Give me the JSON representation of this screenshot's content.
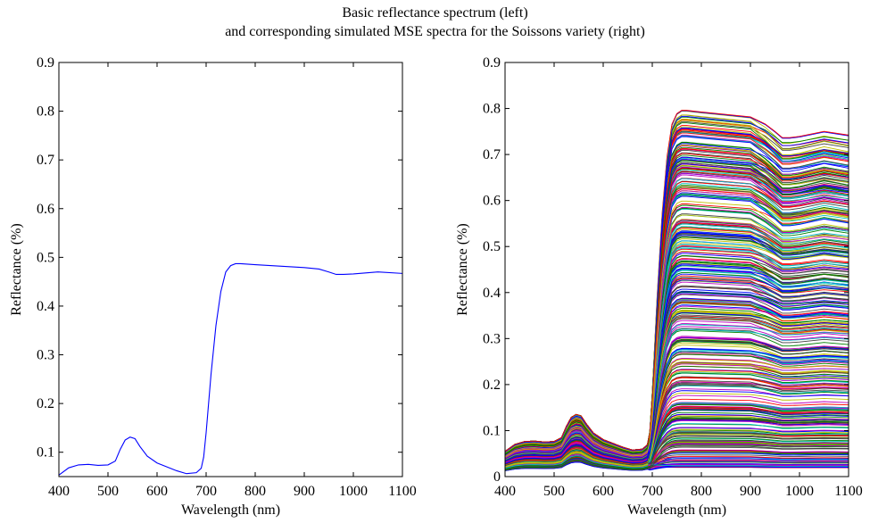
{
  "figure": {
    "title_line1": "Basic reflectance spectrum (left)",
    "title_line2": "and corresponding simulated MSE spectra for the Soissons variety (right)"
  },
  "chart_data": [
    {
      "type": "line",
      "panel": "left",
      "xlabel": "Wavelength (nm)",
      "ylabel": "Reflectance (%)",
      "xlim": [
        400,
        1100
      ],
      "ylim": [
        0.05,
        0.9
      ],
      "xticks": [
        400,
        500,
        600,
        700,
        800,
        900,
        1000,
        1100
      ],
      "yticks": [
        0.1,
        0.2,
        0.3,
        0.4,
        0.5,
        0.6,
        0.7,
        0.8,
        0.9
      ],
      "grid": false,
      "series": [
        {
          "color": "#0000ff",
          "x": [
            400,
            420,
            440,
            460,
            480,
            500,
            515,
            525,
            535,
            545,
            555,
            565,
            580,
            600,
            620,
            640,
            660,
            680,
            690,
            695,
            700,
            705,
            710,
            720,
            730,
            740,
            750,
            760,
            770,
            800,
            850,
            900,
            930,
            950,
            965,
            980,
            1000,
            1050,
            1100
          ],
          "y": [
            0.053,
            0.068,
            0.074,
            0.075,
            0.073,
            0.074,
            0.082,
            0.106,
            0.125,
            0.131,
            0.128,
            0.112,
            0.092,
            0.078,
            0.07,
            0.062,
            0.056,
            0.058,
            0.067,
            0.09,
            0.14,
            0.2,
            0.26,
            0.36,
            0.43,
            0.47,
            0.483,
            0.487,
            0.487,
            0.485,
            0.482,
            0.479,
            0.476,
            0.47,
            0.465,
            0.465,
            0.466,
            0.47,
            0.467
          ]
        }
      ]
    },
    {
      "type": "line",
      "panel": "right",
      "xlabel": "Wavelength (nm)",
      "ylabel": "Reflectance (%)",
      "xlim": [
        400,
        1100
      ],
      "ylim": [
        0,
        0.9
      ],
      "xticks": [
        400,
        500,
        600,
        700,
        800,
        900,
        1000,
        1100
      ],
      "yticks": [
        0,
        0.1,
        0.2,
        0.3,
        0.4,
        0.5,
        0.6,
        0.7,
        0.8,
        0.9
      ],
      "ytick_labels": [
        "0",
        "0.1",
        "0.2",
        "0.3",
        "0.4",
        "0.5",
        "0.6",
        "0.7",
        "0.8",
        "0.9"
      ],
      "grid": false,
      "note_series_count": 400,
      "series_template_x": [
        400,
        420,
        440,
        460,
        480,
        500,
        515,
        525,
        535,
        545,
        555,
        565,
        580,
        600,
        620,
        640,
        660,
        680,
        690,
        695,
        700,
        705,
        710,
        720,
        730,
        740,
        750,
        760,
        770,
        800,
        850,
        900,
        930,
        950,
        965,
        980,
        1000,
        1050,
        1100
      ],
      "series_template_y": [
        0.053,
        0.068,
        0.074,
        0.075,
        0.073,
        0.074,
        0.082,
        0.106,
        0.125,
        0.131,
        0.128,
        0.112,
        0.092,
        0.078,
        0.07,
        0.062,
        0.056,
        0.058,
        0.067,
        0.09,
        0.14,
        0.2,
        0.26,
        0.36,
        0.43,
        0.47,
        0.483,
        0.487,
        0.487,
        0.485,
        0.482,
        0.479,
        0.476,
        0.47,
        0.465,
        0.465,
        0.466,
        0.47,
        0.467
      ],
      "nir_plateau_range": [
        0.02,
        0.8
      ],
      "visible_peak_range": [
        0.02,
        0.135
      ],
      "palette": [
        "#0000ff",
        "#008000",
        "#ff0000",
        "#00bfbf",
        "#bf00bf",
        "#bfbf00",
        "#404040"
      ]
    }
  ]
}
